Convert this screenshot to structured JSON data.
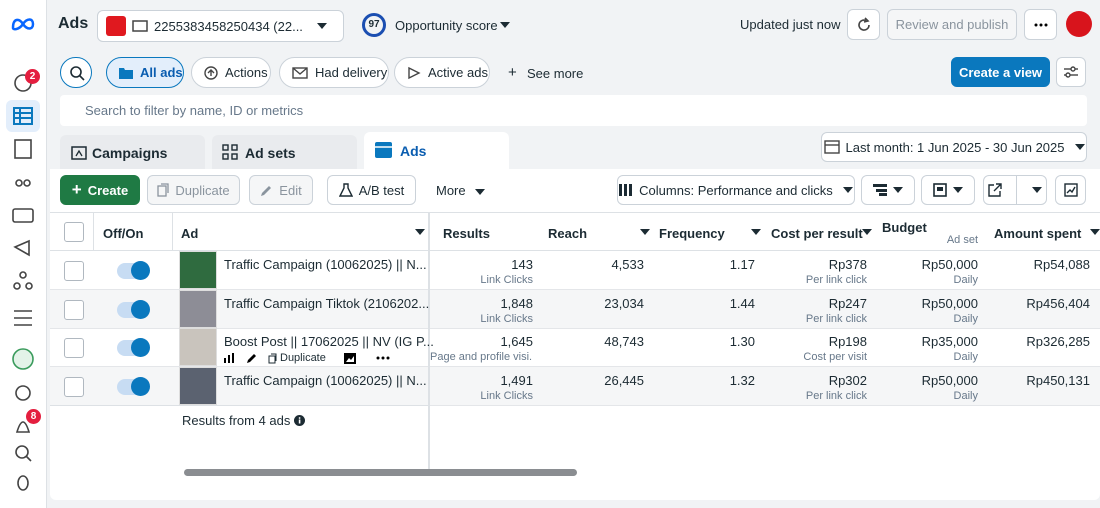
{
  "header": {
    "app_title": "Ads",
    "account": "2255383458250434 (22...",
    "score": "97",
    "score_label": "Opportunity score",
    "updated": "Updated just now",
    "review_button": "Review and publish"
  },
  "sidebar": {
    "badges": [
      "2",
      "8"
    ]
  },
  "filters": {
    "chips": [
      "All ads",
      "Actions",
      "Had delivery",
      "Active ads"
    ],
    "see_more": "See more",
    "create_view": "Create a view",
    "search_placeholder": "Search to filter by name, ID or metrics"
  },
  "tabs": {
    "items": [
      "Campaigns",
      "Ad sets",
      "Ads"
    ],
    "date_range": "Last month: 1 Jun 2025 - 30 Jun 2025"
  },
  "toolbar": {
    "create": "Create",
    "duplicate": "Duplicate",
    "edit": "Edit",
    "ab_test": "A/B test",
    "more": "More",
    "columns": "Columns: Performance and clicks"
  },
  "table": {
    "columns": [
      "Off/On",
      "Ad",
      "Results",
      "Reach",
      "Frequency",
      "Cost per result",
      "Budget",
      "Amount spent"
    ],
    "budget_sub": "Ad set",
    "rows": [
      {
        "name": "Traffic Campaign (10062025) || N...",
        "results": "143",
        "results_sub": "Link Clicks",
        "reach": "4,533",
        "frequency": "1.17",
        "cost": "Rp378",
        "cost_sub": "Per link click",
        "budget": "Rp50,000",
        "budget_sub": "Daily",
        "spent": "Rp54,088"
      },
      {
        "name": "Traffic Campaign Tiktok (2106202...",
        "results": "1,848",
        "results_sub": "Link Clicks",
        "reach": "23,034",
        "frequency": "1.44",
        "cost": "Rp247",
        "cost_sub": "Per link click",
        "budget": "Rp50,000",
        "budget_sub": "Daily",
        "spent": "Rp456,404"
      },
      {
        "name": "Boost Post || 17062025 || NV (IG P...",
        "results": "1,645",
        "results_sub": "Page and profile visi...",
        "reach": "48,743",
        "frequency": "1.30",
        "cost": "Rp198",
        "cost_sub": "Cost per visit",
        "budget": "Rp35,000",
        "budget_sub": "Daily",
        "spent": "Rp326,285"
      },
      {
        "name": "Traffic Campaign (10062025) || N...",
        "results": "1,491",
        "results_sub": "Link Clicks",
        "reach": "26,445",
        "frequency": "1.32",
        "cost": "Rp302",
        "cost_sub": "Per link click",
        "budget": "Rp50,000",
        "budget_sub": "Daily",
        "spent": "Rp450,131"
      }
    ],
    "hover_action": "Duplicate",
    "footer": "Results from 4 ads"
  }
}
